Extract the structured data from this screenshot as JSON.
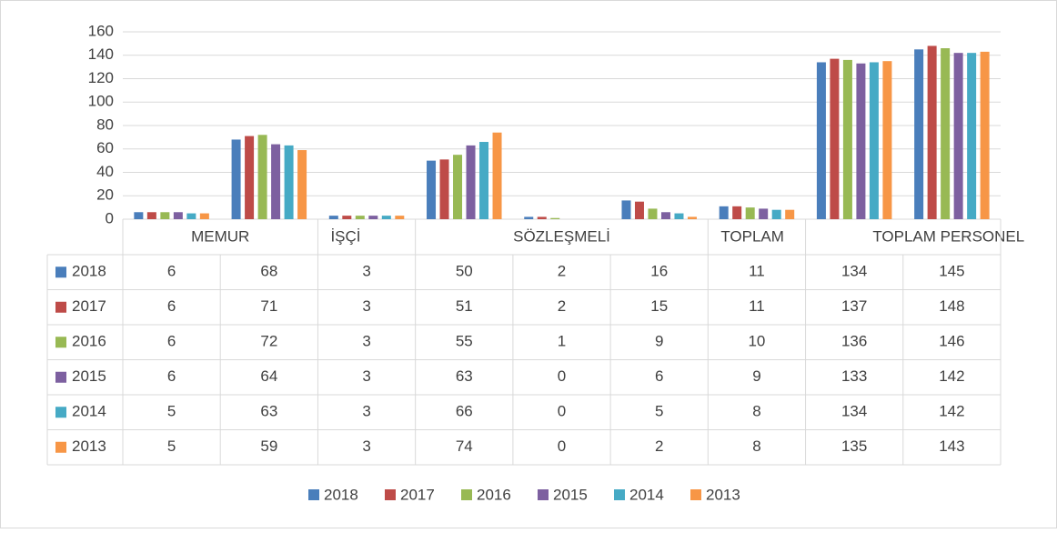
{
  "chart_data": {
    "type": "bar",
    "categories": [
      "MEMUR",
      null,
      "İŞÇİ",
      "SÖZLEŞMELİ",
      null,
      null,
      "TOPLAM",
      "TOPLAM PERSONEL",
      null
    ],
    "series": [
      {
        "name": "2018",
        "color": "#4a7ebb",
        "values": [
          6,
          68,
          3,
          50,
          2,
          16,
          11,
          134,
          145
        ]
      },
      {
        "name": "2017",
        "color": "#be4b48",
        "values": [
          6,
          71,
          3,
          51,
          2,
          15,
          11,
          137,
          148
        ]
      },
      {
        "name": "2016",
        "color": "#98b954",
        "values": [
          6,
          72,
          3,
          55,
          1,
          9,
          10,
          136,
          146
        ]
      },
      {
        "name": "2015",
        "color": "#7d60a0",
        "values": [
          6,
          64,
          3,
          63,
          0,
          6,
          9,
          133,
          142
        ]
      },
      {
        "name": "2014",
        "color": "#46aac5",
        "values": [
          5,
          63,
          3,
          66,
          0,
          5,
          8,
          134,
          142
        ]
      },
      {
        "name": "2013",
        "color": "#f79646",
        "values": [
          5,
          59,
          3,
          74,
          0,
          2,
          8,
          135,
          143
        ]
      }
    ],
    "ylim": [
      0,
      160
    ],
    "yticks": [
      0,
      20,
      40,
      60,
      80,
      100,
      120,
      140,
      160
    ],
    "grid": true,
    "legend": "bottom"
  }
}
